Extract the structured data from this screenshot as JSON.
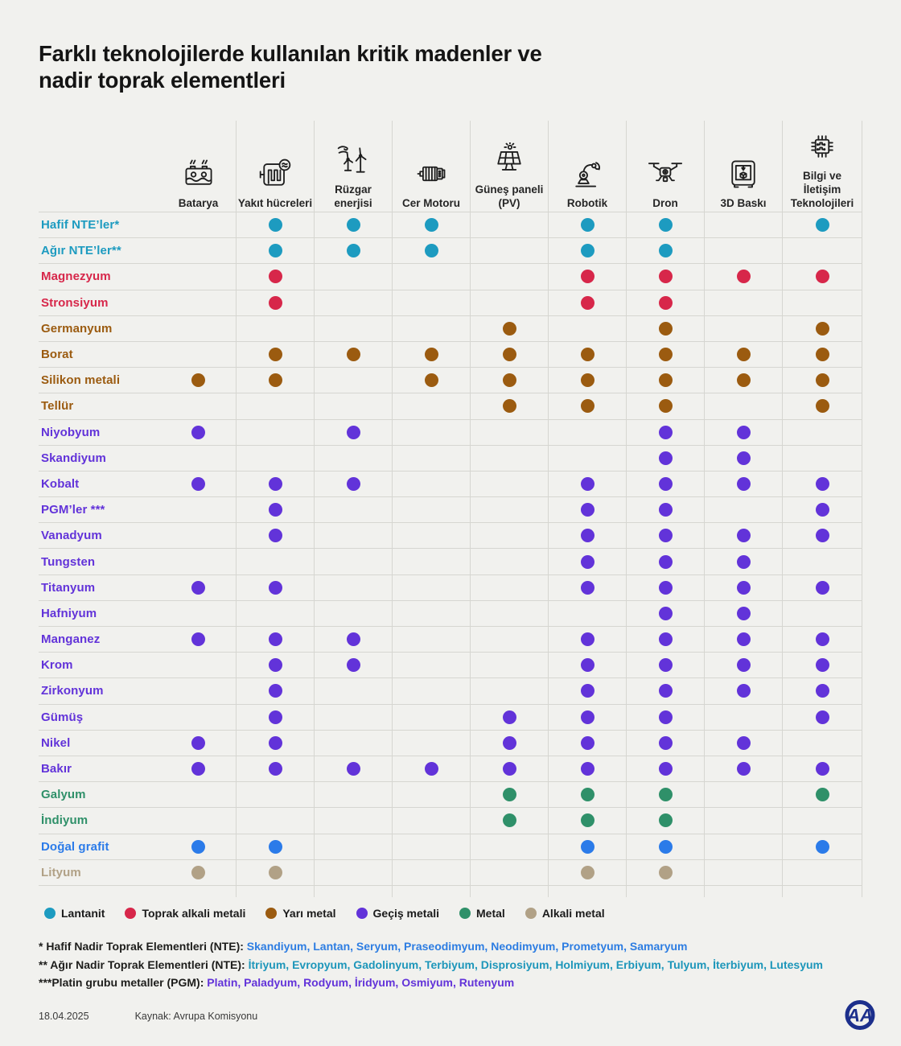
{
  "title": {
    "line1": "Farklı teknolojilerde kullanılan kritik madenler ve",
    "line2": "nadir toprak elementleri"
  },
  "chart_data": {
    "type": "table",
    "description": "Dot matrix: which critical minerals / rare earth elements are used in which technologies",
    "categories": {
      "lantanit": "#1d9bc0",
      "toprak_alkali_metali": "#d7274a",
      "yari_metal": "#9b5b10",
      "gecis_metali": "#6233d9",
      "metal": "#2f9069",
      "alkali_metal": "#b1a186",
      "dogal_grafit": "#2b7be9"
    },
    "columns": [
      {
        "id": "batarya",
        "label": "Batarya",
        "icon": "battery-icon"
      },
      {
        "id": "yakit",
        "label": "Yakıt hücreleri",
        "icon": "fuel-cell-icon"
      },
      {
        "id": "ruzgar",
        "label": "Rüzgar enerjisi",
        "icon": "wind-energy-icon"
      },
      {
        "id": "cer",
        "label": "Cer Motoru",
        "icon": "traction-motor-icon"
      },
      {
        "id": "gunes",
        "label": "Güneş paneli (PV)",
        "icon": "solar-panel-icon"
      },
      {
        "id": "robotik",
        "label": "Robotik",
        "icon": "robot-arm-icon"
      },
      {
        "id": "dron",
        "label": "Dron",
        "icon": "drone-icon"
      },
      {
        "id": "baski",
        "label": "3D Baskı",
        "icon": "printer-3d-icon"
      },
      {
        "id": "bilgi",
        "label": "Bilgi ve İletişim Teknolojileri",
        "icon": "chip-icon"
      }
    ],
    "rows": [
      {
        "label": "Hafif NTE’ler*",
        "category": "lantanit",
        "cells": [
          0,
          1,
          1,
          1,
          0,
          1,
          1,
          0,
          1
        ]
      },
      {
        "label": "Ağır NTE’ler**",
        "category": "lantanit",
        "cells": [
          0,
          1,
          1,
          1,
          0,
          1,
          1,
          0,
          0
        ]
      },
      {
        "label": "Magnezyum",
        "category": "toprak_alkali_metali",
        "cells": [
          0,
          1,
          0,
          0,
          0,
          1,
          1,
          1,
          1
        ]
      },
      {
        "label": "Stronsiyum",
        "category": "toprak_alkali_metali",
        "cells": [
          0,
          1,
          0,
          0,
          0,
          1,
          1,
          0,
          0
        ]
      },
      {
        "label": "Germanyum",
        "category": "yari_metal",
        "cells": [
          0,
          0,
          0,
          0,
          1,
          0,
          1,
          0,
          1
        ]
      },
      {
        "label": "Borat",
        "category": "yari_metal",
        "cells": [
          0,
          1,
          1,
          1,
          1,
          1,
          1,
          1,
          1
        ]
      },
      {
        "label": "Silikon metali",
        "category": "yari_metal",
        "cells": [
          1,
          1,
          0,
          1,
          1,
          1,
          1,
          1,
          1
        ]
      },
      {
        "label": "Tellür",
        "category": "yari_metal",
        "cells": [
          0,
          0,
          0,
          0,
          1,
          1,
          1,
          0,
          1
        ]
      },
      {
        "label": "Niyobyum",
        "category": "gecis_metali",
        "cells": [
          1,
          0,
          1,
          0,
          0,
          0,
          1,
          1,
          0
        ]
      },
      {
        "label": "Skandiyum",
        "category": "gecis_metali",
        "cells": [
          0,
          0,
          0,
          0,
          0,
          0,
          1,
          1,
          0
        ]
      },
      {
        "label": "Kobalt",
        "category": "gecis_metali",
        "cells": [
          1,
          1,
          1,
          0,
          0,
          1,
          1,
          1,
          1
        ]
      },
      {
        "label": "PGM’ler ***",
        "category": "gecis_metali",
        "cells": [
          0,
          1,
          0,
          0,
          0,
          1,
          1,
          0,
          1
        ]
      },
      {
        "label": "Vanadyum",
        "category": "gecis_metali",
        "cells": [
          0,
          1,
          0,
          0,
          0,
          1,
          1,
          1,
          1
        ]
      },
      {
        "label": "Tungsten",
        "category": "gecis_metali",
        "cells": [
          0,
          0,
          0,
          0,
          0,
          1,
          1,
          1,
          0
        ]
      },
      {
        "label": "Titanyum",
        "category": "gecis_metali",
        "cells": [
          1,
          1,
          0,
          0,
          0,
          1,
          1,
          1,
          1
        ]
      },
      {
        "label": "Hafniyum",
        "category": "gecis_metali",
        "cells": [
          0,
          0,
          0,
          0,
          0,
          0,
          1,
          1,
          0
        ]
      },
      {
        "label": "Manganez",
        "category": "gecis_metali",
        "cells": [
          1,
          1,
          1,
          0,
          0,
          1,
          1,
          1,
          1
        ]
      },
      {
        "label": "Krom",
        "category": "gecis_metali",
        "cells": [
          0,
          1,
          1,
          0,
          0,
          1,
          1,
          1,
          1
        ]
      },
      {
        "label": "Zirkonyum",
        "category": "gecis_metali",
        "cells": [
          0,
          1,
          0,
          0,
          0,
          1,
          1,
          1,
          1
        ]
      },
      {
        "label": "Gümüş",
        "category": "gecis_metali",
        "cells": [
          0,
          1,
          0,
          0,
          1,
          1,
          1,
          0,
          1
        ]
      },
      {
        "label": "Nikel",
        "category": "gecis_metali",
        "cells": [
          1,
          1,
          0,
          0,
          1,
          1,
          1,
          1,
          0
        ]
      },
      {
        "label": "Bakır",
        "category": "gecis_metali",
        "cells": [
          1,
          1,
          1,
          1,
          1,
          1,
          1,
          1,
          1
        ]
      },
      {
        "label": "Galyum",
        "category": "metal",
        "cells": [
          0,
          0,
          0,
          0,
          1,
          1,
          1,
          0,
          1
        ]
      },
      {
        "label": "İndiyum",
        "category": "metal",
        "cells": [
          0,
          0,
          0,
          0,
          1,
          1,
          1,
          0,
          0
        ]
      },
      {
        "label": "Doğal grafit",
        "category": "dogal_grafit",
        "cells": [
          1,
          1,
          0,
          0,
          0,
          1,
          1,
          0,
          1
        ]
      },
      {
        "label": "Lityum",
        "category": "alkali_metal",
        "cells": [
          1,
          1,
          0,
          0,
          0,
          1,
          1,
          0,
          0
        ]
      }
    ],
    "legend": [
      {
        "label": "Lantanit",
        "category": "lantanit"
      },
      {
        "label": "Toprak alkali metali",
        "category": "toprak_alkali_metali"
      },
      {
        "label": "Yarı metal",
        "category": "yari_metal"
      },
      {
        "label": "Geçiş metali",
        "category": "gecis_metali"
      },
      {
        "label": "Metal",
        "category": "metal"
      },
      {
        "label": "Alkali metal",
        "category": "alkali_metal"
      }
    ]
  },
  "footnotes": [
    {
      "prefix": "* Hafif Nadir Toprak Elementleri (NTE): ",
      "list": "Skandiyum, Lantan, Seryum, Praseodimyum, Neodimyum, Prometyum, Samaryum",
      "color": "#2d7de2"
    },
    {
      "prefix": "** Ağır Nadir Toprak Elementleri (NTE):  ",
      "list": "İtriyum, Evropyum, Gadolinyum, Terbiyum, Disprosiyum, Holmiyum, Erbiyum, Tulyum, İterbiyum, Lutesyum",
      "color": "#1d96ba"
    },
    {
      "prefix": "***Platin grubu metaller (PGM): ",
      "list": "Platin, Paladyum, Rodyum, İridyum, Osmiyum, Rutenyum",
      "color": "#6233d9"
    }
  ],
  "footer": {
    "date": "18.04.2025",
    "source": "Kaynak: Avrupa Komisyonu",
    "logo": "anadolu-agency-logo"
  }
}
